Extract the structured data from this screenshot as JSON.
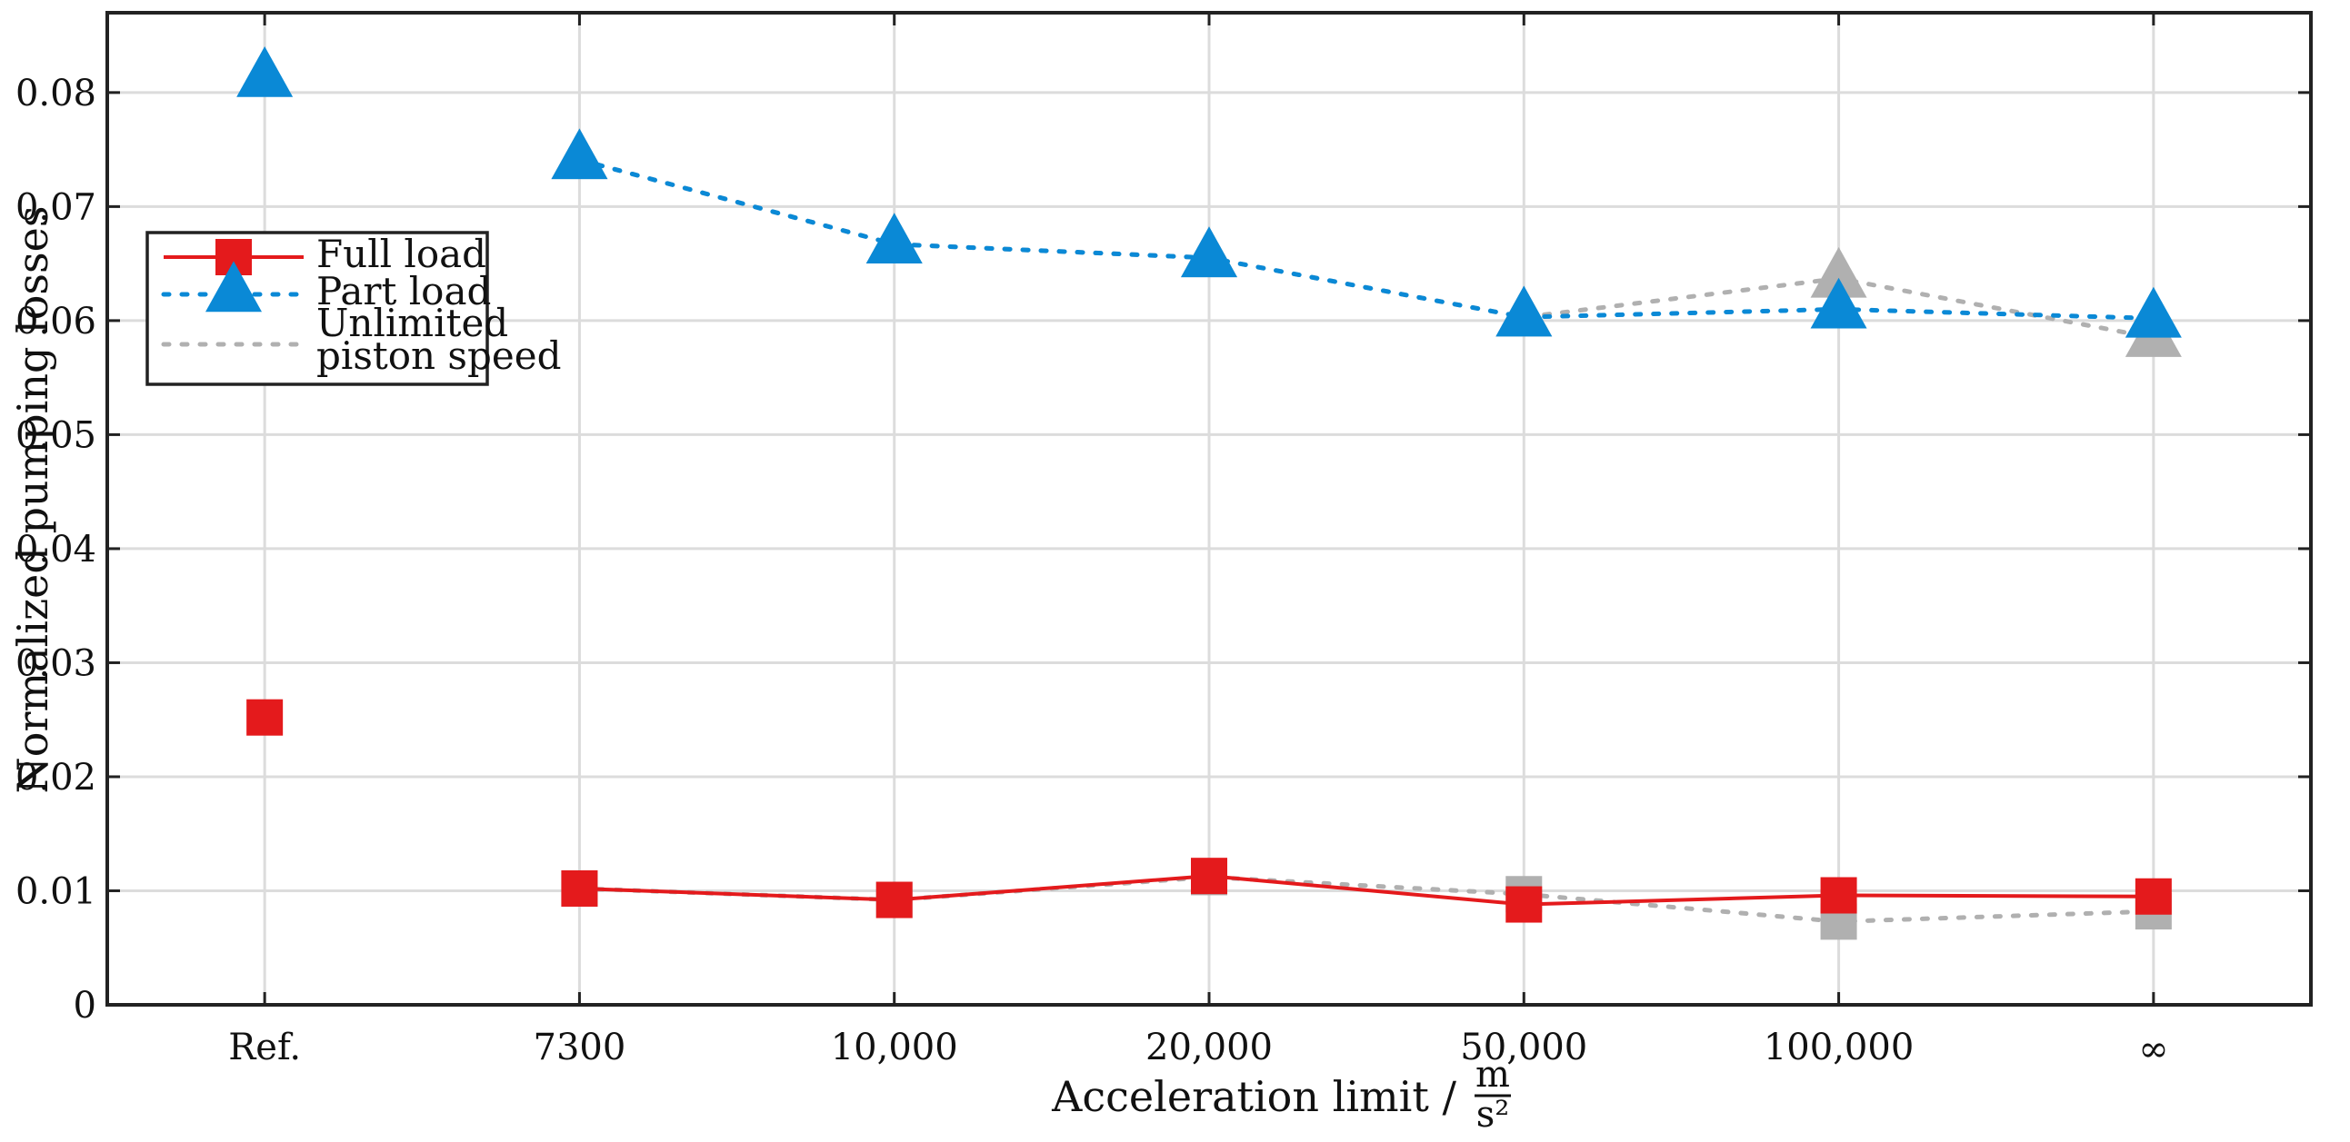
{
  "chart_data": {
    "type": "line",
    "title": "",
    "xlabel": "Acceleration limit /",
    "xlabel_unit_num": "m",
    "xlabel_unit_den": "s²",
    "ylabel": "Normalized pumping losses",
    "categories": [
      "Ref.",
      "7300",
      "10,000",
      "20,000",
      "50,000",
      "100,000",
      "∞"
    ],
    "ylim": [
      0,
      0.087
    ],
    "yticks": [
      0,
      0.01,
      0.02,
      0.03,
      0.04,
      0.05,
      0.06,
      0.07,
      0.08
    ],
    "ytick_labels": [
      "0",
      "0.01",
      "0.02",
      "0.03",
      "0.04",
      "0.05",
      "0.06",
      "0.07",
      "0.08"
    ],
    "grid": true,
    "legend_position": "center-left",
    "series": [
      {
        "name": "Unlimited piston speed (full load)",
        "legend": false,
        "color": "#b0b0b0",
        "line": "dotted",
        "marker": "square",
        "values": [
          null,
          0.0102,
          0.0092,
          0.0112,
          0.0097,
          0.0073,
          0.0082
        ]
      },
      {
        "name": "Unlimited piston speed (part load)",
        "legend": false,
        "color": "#b0b0b0",
        "line": "dotted",
        "marker": "triangle",
        "values": [
          null,
          0.0741,
          0.0667,
          0.0655,
          0.0603,
          0.0637,
          0.0585
        ]
      },
      {
        "name": "Full load",
        "legend": true,
        "color": "#e41a1c",
        "line": "solid",
        "marker": "square",
        "values": [
          0.0252,
          0.0102,
          0.0092,
          0.0113,
          0.0088,
          0.0096,
          0.0095
        ]
      },
      {
        "name": "Part load",
        "legend": true,
        "color": "#0a89d6",
        "line": "dotted",
        "marker": "triangle",
        "values": [
          0.0813,
          0.0741,
          0.0667,
          0.0655,
          0.0603,
          0.061,
          0.0602
        ]
      }
    ],
    "legend_entries": [
      {
        "label": "Full load",
        "color": "#e41a1c",
        "line": "solid",
        "marker": "square"
      },
      {
        "label": "Part load",
        "color": "#0a89d6",
        "line": "dotted",
        "marker": "triangle"
      },
      {
        "label_line1": "Unlimited",
        "label_line2": "piston speed",
        "color": "#b0b0b0",
        "line": "dotted",
        "marker": "none"
      }
    ]
  }
}
